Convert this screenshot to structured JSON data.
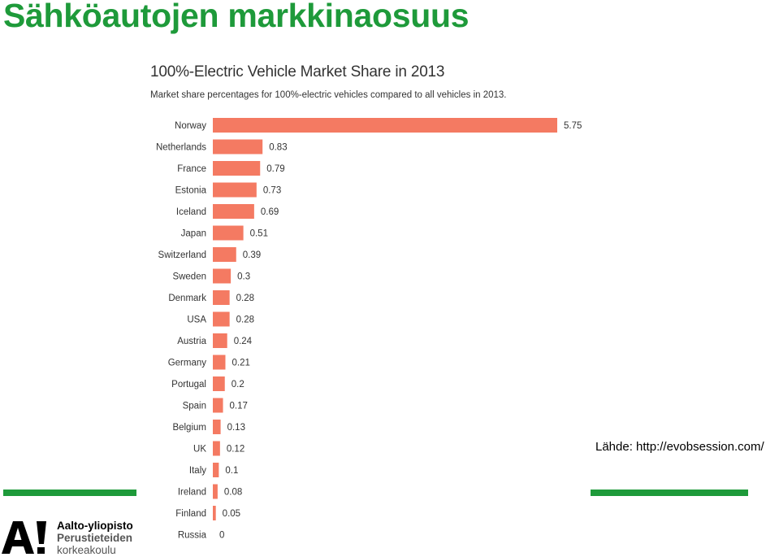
{
  "slide": {
    "title": "Sähköautojen markkinaosuus",
    "source": "Lähde: http://evobsession.com/"
  },
  "logo": {
    "line1": "Aalto-yliopisto",
    "line2": "Perustieteiden",
    "line3": "korkeakoulu"
  },
  "colors": {
    "accent_green": "#1e9a3a",
    "bar": "#f47a62"
  },
  "chart_data": {
    "type": "bar",
    "orientation": "horizontal",
    "title": "100%-Electric Vehicle Market Share in 2013",
    "subtitle": "Market share percentages for 100%-electric vehicles compared to all vehicles in 2013.",
    "categories": [
      "Norway",
      "Netherlands",
      "France",
      "Estonia",
      "Iceland",
      "Japan",
      "Switzerland",
      "Sweden",
      "Denmark",
      "USA",
      "Austria",
      "Germany",
      "Portugal",
      "Spain",
      "Belgium",
      "UK",
      "Italy",
      "Ireland",
      "Finland",
      "Russia"
    ],
    "values": [
      5.75,
      0.83,
      0.79,
      0.73,
      0.69,
      0.51,
      0.39,
      0.3,
      0.28,
      0.28,
      0.24,
      0.21,
      0.2,
      0.17,
      0.13,
      0.12,
      0.1,
      0.08,
      0.05,
      0
    ],
    "value_labels": [
      "5.75",
      "0.83",
      "0.79",
      "0.73",
      "0.69",
      "0.51",
      "0.39",
      "0.3",
      "0.28",
      "0.28",
      "0.24",
      "0.21",
      "0.2",
      "0.17",
      "0.13",
      "0.12",
      "0.1",
      "0.08",
      "0.05",
      "0"
    ],
    "xlim": [
      0,
      5.75
    ],
    "grid": false,
    "legend": "none"
  }
}
